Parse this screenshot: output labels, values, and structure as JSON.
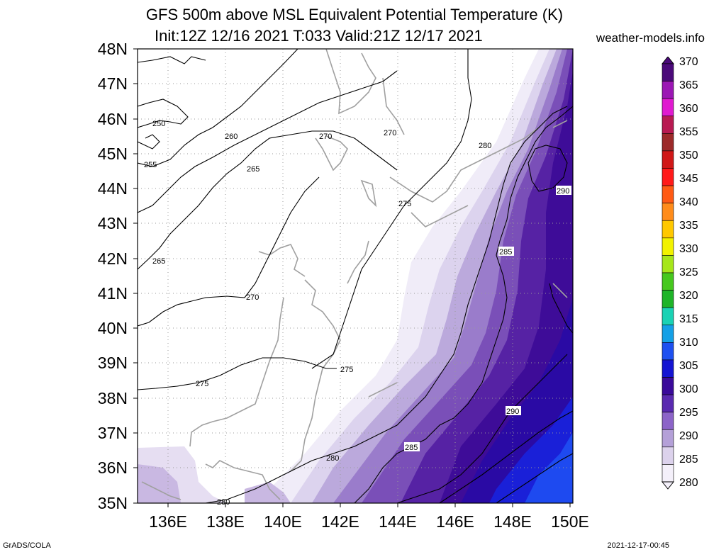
{
  "title": {
    "line1": "GFS 500m above MSL Equivalent Potential Temperature (K)",
    "line2": "Init:12Z 12/16 2021 T:033 Valid:21Z 12/17 2021",
    "site": "weather-models.info"
  },
  "footer": {
    "left": "GrADS/COLA",
    "right": "2021-12-17-00:45"
  },
  "map": {
    "lat_labels": [
      "48N",
      "47N",
      "46N",
      "45N",
      "44N",
      "43N",
      "42N",
      "41N",
      "40N",
      "39N",
      "38N",
      "37N",
      "36N",
      "35N"
    ],
    "lon_labels": [
      "136E",
      "138E",
      "140E",
      "142E",
      "144E",
      "146E",
      "148E",
      "150E"
    ],
    "contour_labels": [
      {
        "text": "250"
      },
      {
        "text": "255"
      },
      {
        "text": "260"
      },
      {
        "text": "265"
      },
      {
        "text": "270"
      },
      {
        "text": "270"
      },
      {
        "text": "270"
      },
      {
        "text": "265"
      },
      {
        "text": "275"
      },
      {
        "text": "275"
      },
      {
        "text": "275"
      },
      {
        "text": "280"
      },
      {
        "text": "280"
      },
      {
        "text": "280"
      },
      {
        "text": "285"
      },
      {
        "text": "285"
      },
      {
        "text": "290"
      },
      {
        "text": "290"
      }
    ]
  },
  "colorbar": {
    "labels": [
      "370",
      "365",
      "360",
      "355",
      "350",
      "345",
      "340",
      "335",
      "330",
      "325",
      "320",
      "315",
      "310",
      "305",
      "300",
      "295",
      "290",
      "285",
      "280"
    ],
    "colors": [
      "#4b0a7a",
      "#9b17b4",
      "#e01ad0",
      "#b81a52",
      "#9c2a2a",
      "#d01818",
      "#ff1a1a",
      "#ff5a14",
      "#ff8c1a",
      "#ffc800",
      "#f2f200",
      "#a6e61a",
      "#46c81e",
      "#1eb428",
      "#1ad2b4",
      "#14a0e6",
      "#1e50f0",
      "#1414d2",
      "#3a0a9a",
      "#5a2ab0",
      "#8c64c8",
      "#b4a0d8",
      "#dcd2ec",
      "#f4f0fa"
    ]
  }
}
